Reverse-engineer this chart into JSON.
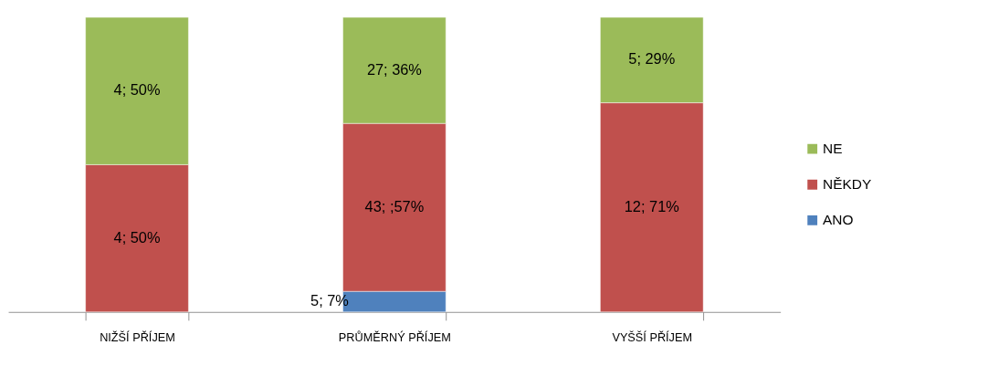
{
  "chart_data": {
    "type": "bar",
    "stacked": true,
    "categories": [
      "NIŽŠÍ PŘÍJEM",
      "PRŮMĚRNÝ PŘÍJEM",
      "VYŠŠÍ PŘÍJEM"
    ],
    "series": [
      {
        "name": "ANO",
        "color": "#4f81bd",
        "values": [
          null,
          7,
          null
        ],
        "value_labels": [
          null,
          "5; 7%",
          null
        ]
      },
      {
        "name": "NĚKDY",
        "color": "#c0504d",
        "values": [
          50,
          57,
          71
        ],
        "value_labels": [
          "4; 50%",
          "43; ;57%",
          "12; 71%"
        ]
      },
      {
        "name": "NE",
        "color": "#9bbb59",
        "values": [
          50,
          36,
          29
        ],
        "value_labels": [
          "4; 50%",
          "27; 36%",
          "5; 29%"
        ]
      }
    ],
    "legend": "right",
    "marker": "square",
    "grid": false
  }
}
